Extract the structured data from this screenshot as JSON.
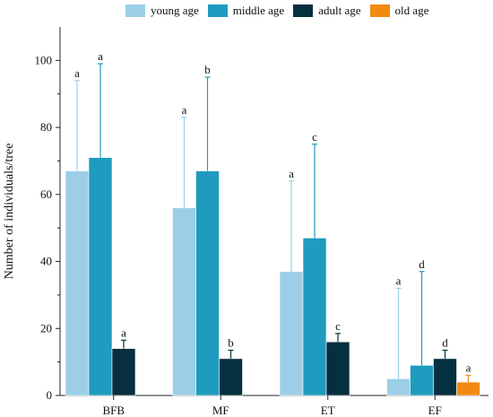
{
  "chart_data": {
    "type": "bar",
    "title": "",
    "xlabel": "",
    "ylabel": "Number of individuals/tree",
    "ylim": [
      0,
      110
    ],
    "yticks": [
      0,
      20,
      40,
      60,
      80,
      100
    ],
    "categories": [
      "BFB",
      "MF",
      "ET",
      "EF"
    ],
    "legend_position": "top",
    "series": [
      {
        "name": "young age",
        "color": "#9ccfe7",
        "values": [
          67,
          56,
          37,
          5
        ],
        "errors": [
          27,
          27,
          27,
          27
        ],
        "labels": [
          "a",
          "a",
          "a",
          "a"
        ]
      },
      {
        "name": "middle age",
        "color": "#1f9bbf",
        "values": [
          71,
          67,
          47,
          9
        ],
        "errors": [
          28,
          28,
          28,
          28
        ],
        "labels": [
          "a",
          "b",
          "c",
          "d"
        ]
      },
      {
        "name": "adult age",
        "color": "#062f40",
        "values": [
          14,
          11,
          16,
          11
        ],
        "errors": [
          2.5,
          2.5,
          2.5,
          2.5
        ],
        "labels": [
          "a",
          "b",
          "c",
          "d"
        ]
      },
      {
        "name": "old age",
        "color": "#f28a12",
        "values": [
          null,
          null,
          null,
          4
        ],
        "errors": [
          null,
          null,
          null,
          2
        ],
        "labels": [
          null,
          null,
          null,
          "a"
        ]
      }
    ]
  }
}
